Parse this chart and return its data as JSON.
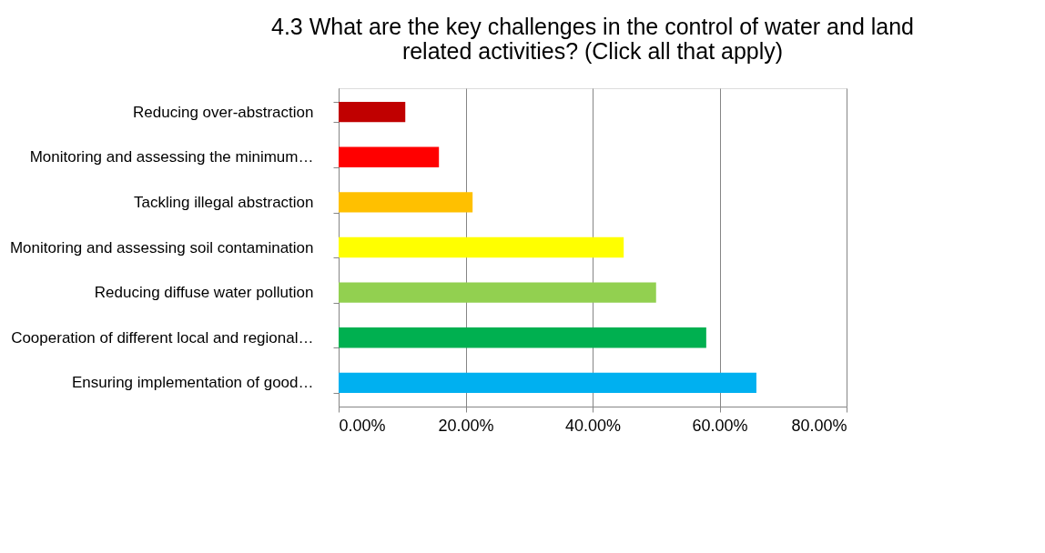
{
  "chart_data": {
    "type": "bar",
    "orientation": "horizontal",
    "title": [
      "4.3 What are the key challenges in the control of water and land",
      "related activities? (Click all that apply)"
    ],
    "categories": [
      "Reducing over-abstraction",
      "Monitoring and assessing the minimum…",
      "Tackling illegal abstraction",
      "Monitoring and assessing soil contamination",
      "Reducing diffuse water pollution",
      "Cooperation of different local and regional…",
      "Ensuring implementation of good…"
    ],
    "values": [
      10.5,
      15.8,
      21.1,
      44.9,
      50.0,
      57.9,
      65.8
    ],
    "colors": [
      "#c00000",
      "#ff0000",
      "#ffc000",
      "#ffff00",
      "#92d050",
      "#00b050",
      "#00b0f0"
    ],
    "xlim": [
      0,
      80
    ],
    "xticks": [
      {
        "value": 0,
        "label": "0.00%"
      },
      {
        "value": 20,
        "label": "20.00%"
      },
      {
        "value": 40,
        "label": "40.00%"
      },
      {
        "value": 60,
        "label": "60.00%"
      },
      {
        "value": 80,
        "label": "80.00%"
      }
    ],
    "grid": "x",
    "legend": false
  }
}
